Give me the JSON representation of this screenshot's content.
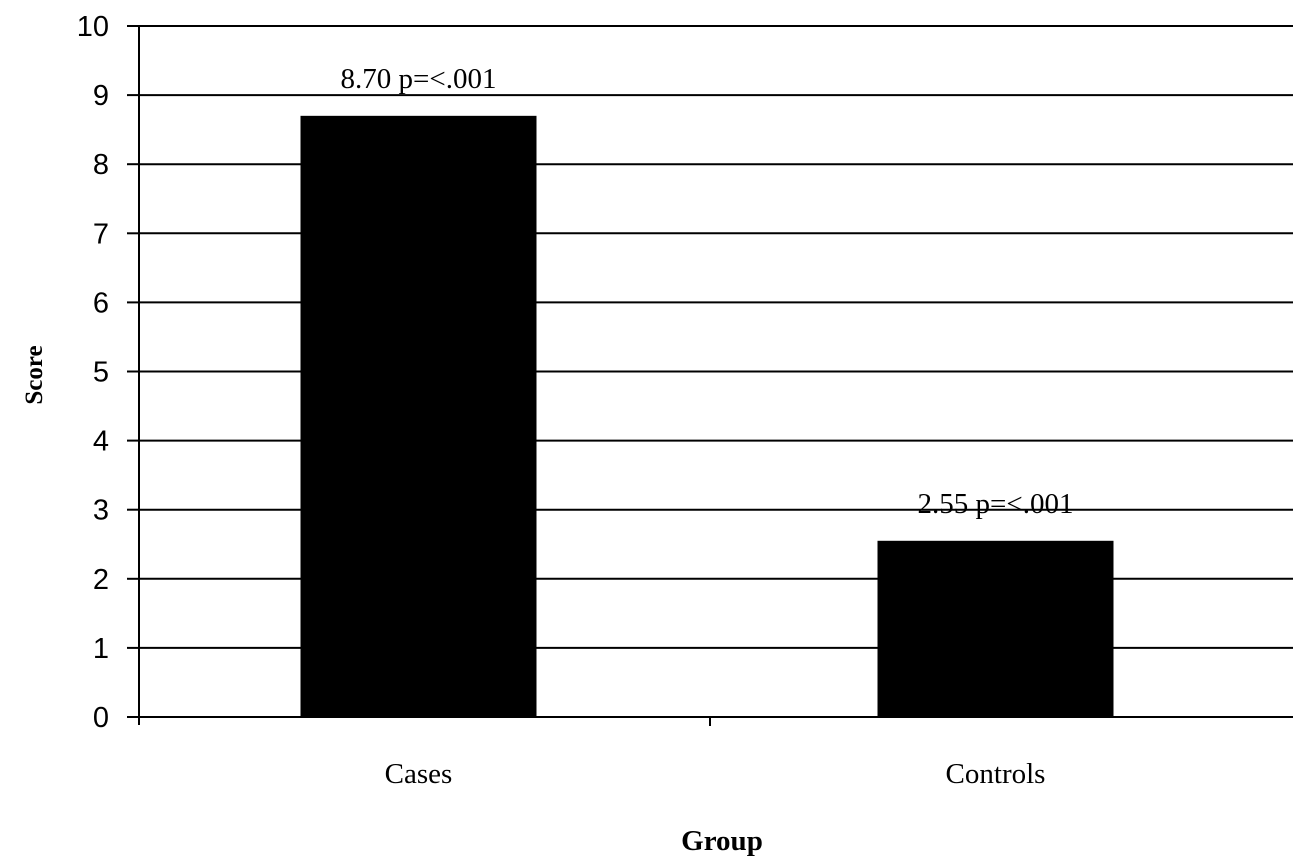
{
  "chart_data": {
    "type": "bar",
    "categories": [
      "Cases",
      "Controls"
    ],
    "values": [
      8.7,
      2.55
    ],
    "data_labels": [
      "8.70 p=<.001",
      "2.55 p=<.001"
    ],
    "xlabel": "Group",
    "ylabel": "Score",
    "ylim": [
      0,
      10
    ],
    "yticks": [
      "0",
      "1",
      "2",
      "3",
      "4",
      "5",
      "6",
      "7",
      "8",
      "9",
      "10"
    ],
    "grid": true,
    "legend": "none",
    "bar_color": "#000000",
    "grid_color": "#000000"
  }
}
